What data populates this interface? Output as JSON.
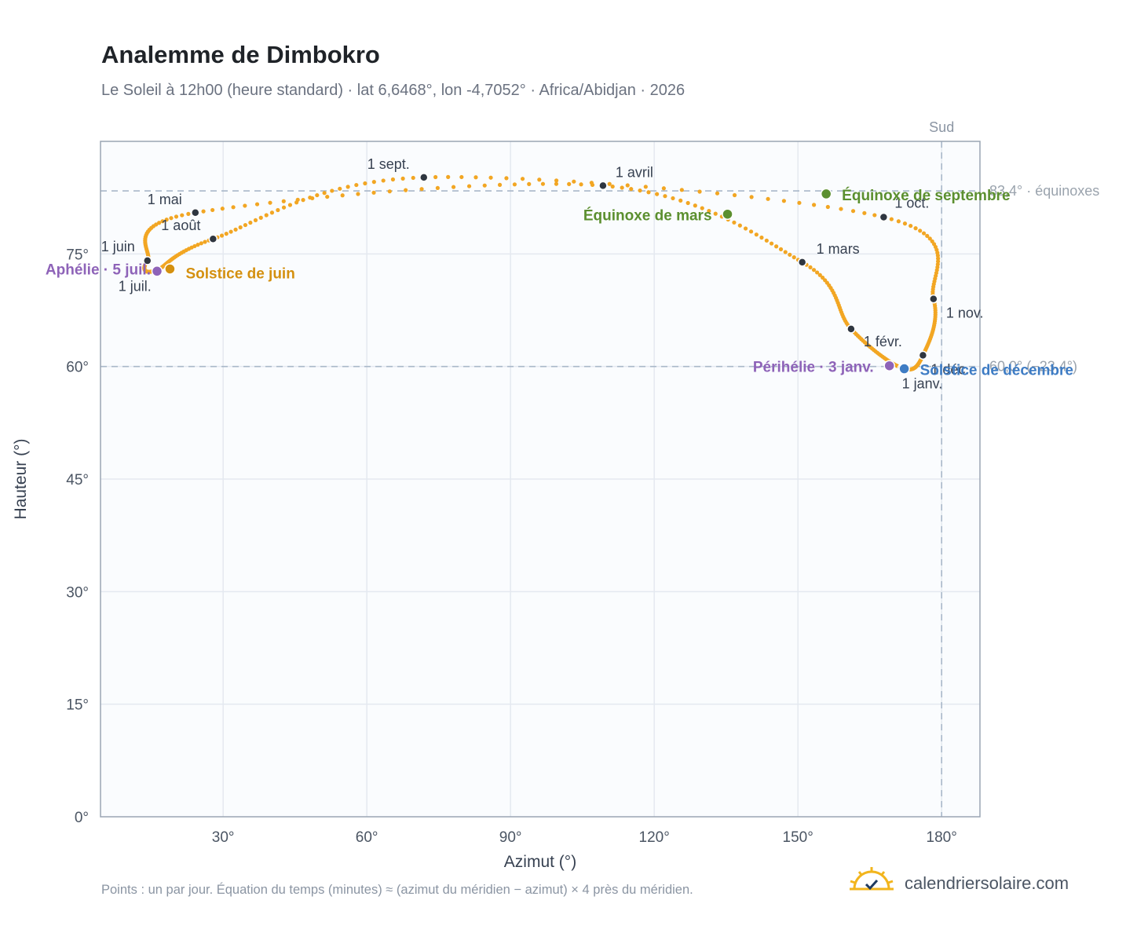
{
  "header": {
    "title": "Analemme de Dimbokro",
    "subtitle": "Le Soleil à 12h00 (heure standard) · lat 6,6468°, lon -4,7052° · Africa/Abidjan · 2026"
  },
  "footer": {
    "note": "Points : un par jour. Équation du temps (minutes) ≈ (azimut du méridien − azimut) × 4 près du méridien.",
    "brand": "calendriersolaire.com"
  },
  "colors": {
    "curve": "#f2a623",
    "month_marker": "#2f3640",
    "equinox": "#5b8f2f",
    "june_solstice": "#d4900f",
    "december_solstice": "#3e7cc4",
    "apsis": "#8e63b8",
    "reference_line": "#a9b8c9",
    "plot_background": "#fafcfe",
    "grid": "#e4e9f0",
    "frame": "#9aa5b4"
  },
  "chart_data": {
    "type": "scatter",
    "xlabel": "Azimut (°)",
    "ylabel": "Hauteur (°)",
    "xlim": [
      4.4,
      188
    ],
    "ylim": [
      0,
      90
    ],
    "x_ticks": [
      30,
      60,
      90,
      120,
      150,
      180
    ],
    "x_tick_labels": [
      "30°",
      "60°",
      "90°",
      "120°",
      "150°",
      "180°"
    ],
    "y_ticks": [
      0,
      15,
      30,
      45,
      60,
      75
    ],
    "y_tick_labels": [
      "0°",
      "15°",
      "30°",
      "45°",
      "60°",
      "75°"
    ],
    "grid": true,
    "reference_lines": [
      {
        "axis": "x",
        "value": 180,
        "label": "Sud"
      },
      {
        "axis": "y",
        "value": 83.4,
        "label": "83,4° · équinoxes"
      },
      {
        "axis": "y",
        "value": 60.0,
        "label": "60,0° (−23,4°)"
      }
    ],
    "key_points": [
      {
        "label": "1 janv.",
        "azimuth": 171.7,
        "altitude": 59.8,
        "kind": "month"
      },
      {
        "label": "1 févr.",
        "azimuth": 161.1,
        "altitude": 65.0,
        "kind": "month"
      },
      {
        "label": "1 mars",
        "azimuth": 150.9,
        "altitude": 73.9,
        "kind": "month"
      },
      {
        "label": "1 avril",
        "azimuth": 109.3,
        "altitude": 84.1,
        "kind": "month"
      },
      {
        "label": "1 mai",
        "azimuth": 24.2,
        "altitude": 80.5,
        "kind": "month"
      },
      {
        "label": "1 juin",
        "azimuth": 14.2,
        "altitude": 74.1,
        "kind": "month"
      },
      {
        "label": "1 juil.",
        "azimuth": 16.0,
        "altitude": 72.8,
        "kind": "month"
      },
      {
        "label": "1 août",
        "azimuth": 27.9,
        "altitude": 77.0,
        "kind": "month"
      },
      {
        "label": "1 sept.",
        "azimuth": 71.9,
        "altitude": 85.2,
        "kind": "month"
      },
      {
        "label": "1 oct.",
        "azimuth": 167.9,
        "altitude": 79.9,
        "kind": "month"
      },
      {
        "label": "1 nov.",
        "azimuth": 178.3,
        "altitude": 69.0,
        "kind": "month"
      },
      {
        "label": "1 déc.",
        "azimuth": 176.1,
        "altitude": 61.5,
        "kind": "month"
      },
      {
        "label": "Équinoxe de mars",
        "azimuth": 135.3,
        "altitude": 80.3,
        "kind": "march_equinox"
      },
      {
        "label": "Équinoxe de septembre",
        "azimuth": 155.9,
        "altitude": 83.0,
        "kind": "september_equinox"
      },
      {
        "label": "Solstice de juin",
        "azimuth": 18.9,
        "altitude": 73.0,
        "kind": "june_solstice"
      },
      {
        "label": "Solstice de décembre",
        "azimuth": 172.2,
        "altitude": 59.7,
        "kind": "december_solstice"
      },
      {
        "label": "Aphélie · 5 juil.",
        "azimuth": 16.2,
        "altitude": 72.7,
        "kind": "aphelion"
      },
      {
        "label": "Périhélie · 3 janv.",
        "azimuth": 169.1,
        "altitude": 60.1,
        "kind": "perihelion"
      }
    ],
    "daily_path_note": "one point per day; path passes through the key points in date order"
  }
}
